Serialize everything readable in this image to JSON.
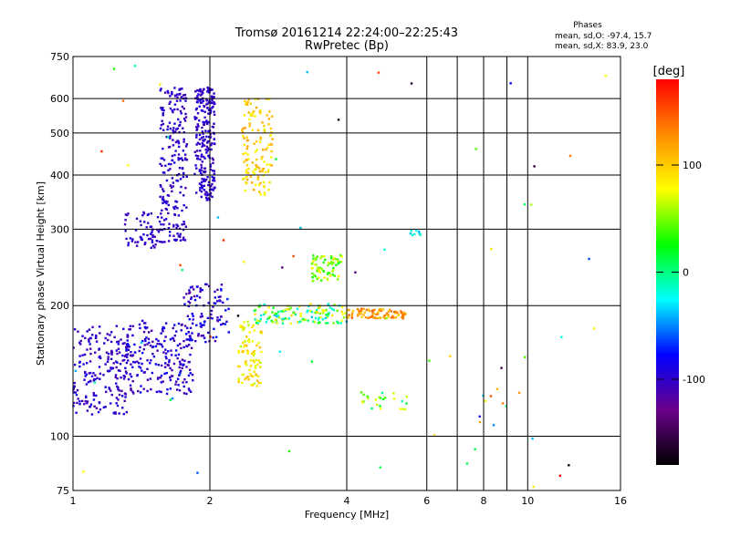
{
  "chart_data": {
    "type": "scatter",
    "title": "Tromsø 20161214 22:24:00–22:25:43",
    "subtitle": "RwPretec (Bp)",
    "xlabel": "Frequency [MHz]",
    "ylabel": "Stationary phase Virtual Height [km]",
    "x_scale": "log",
    "y_scale": "log",
    "xlim": [
      1,
      16
    ],
    "ylim": [
      75,
      750
    ],
    "x_ticks": [
      1,
      2,
      4,
      6,
      8,
      10,
      16
    ],
    "x_minor_gridlines": [
      7,
      9
    ],
    "y_ticks": [
      75,
      100,
      200,
      300,
      400,
      500,
      600,
      750
    ],
    "grid": true,
    "stats": {
      "title": "Phases",
      "line_o": "mean, sd,O: -97.4, 15.7",
      "line_x": "mean, sd,X:  83.9, 23.0"
    },
    "colorbar": {
      "label": "[deg]",
      "range": [
        -180,
        180
      ],
      "ticks": [
        100,
        0,
        -100
      ],
      "colors": [
        "#000000",
        "#6a008a",
        "#0000ff",
        "#00ffff",
        "#00ff00",
        "#ffff00",
        "#ff8c00",
        "#ff0000"
      ]
    },
    "clusters": [
      {
        "x": [
          1.0,
          1.32
        ],
        "y": [
          112,
          180
        ],
        "phase": [
          -115,
          -85
        ],
        "n": 200
      },
      {
        "x": [
          1.3,
          1.85
        ],
        "y": [
          125,
          185
        ],
        "phase": [
          -115,
          -80
        ],
        "n": 220
      },
      {
        "x": [
          1.75,
          2.2
        ],
        "y": [
          165,
          225
        ],
        "phase": [
          -120,
          -70
        ],
        "n": 100
      },
      {
        "x": [
          1.55,
          1.78
        ],
        "y": [
          280,
          640
        ],
        "phase": [
          -110,
          -90
        ],
        "n": 220
      },
      {
        "x": [
          1.85,
          2.05
        ],
        "y": [
          350,
          640
        ],
        "phase": [
          -110,
          -90
        ],
        "n": 240
      },
      {
        "x": [
          1.3,
          1.55
        ],
        "y": [
          270,
          330
        ],
        "phase": [
          -110,
          -90
        ],
        "n": 60
      },
      {
        "x": [
          2.35,
          2.75
        ],
        "y": [
          360,
          600
        ],
        "phase": [
          70,
          120
        ],
        "n": 130
      },
      {
        "x": [
          2.3,
          2.6
        ],
        "y": [
          130,
          185
        ],
        "phase": [
          60,
          110
        ],
        "n": 90
      },
      {
        "x": [
          2.5,
          4.0
        ],
        "y": [
          182,
          202
        ],
        "phase": [
          -40,
          100
        ],
        "n": 130
      },
      {
        "x": [
          3.35,
          3.9
        ],
        "y": [
          228,
          262
        ],
        "phase": [
          20,
          90
        ],
        "n": 70
      },
      {
        "x": [
          4.0,
          5.4
        ],
        "y": [
          187,
          197
        ],
        "phase": [
          95,
          150
        ],
        "n": 90
      },
      {
        "x": [
          4.3,
          5.5
        ],
        "y": [
          115,
          127
        ],
        "phase": [
          -10,
          90
        ],
        "n": 25
      },
      {
        "x": [
          5.5,
          5.8
        ],
        "y": [
          290,
          300
        ],
        "phase": [
          -40,
          -10
        ],
        "n": 8
      },
      {
        "x": [
          7.8,
          9.6
        ],
        "y": [
          100,
          130
        ],
        "phase": [
          -120,
          160
        ],
        "n": 10
      },
      {
        "x": [
          1.0,
          16.0
        ],
        "y": [
          75,
          750
        ],
        "phase": [
          -180,
          180
        ],
        "n": 60
      }
    ]
  }
}
